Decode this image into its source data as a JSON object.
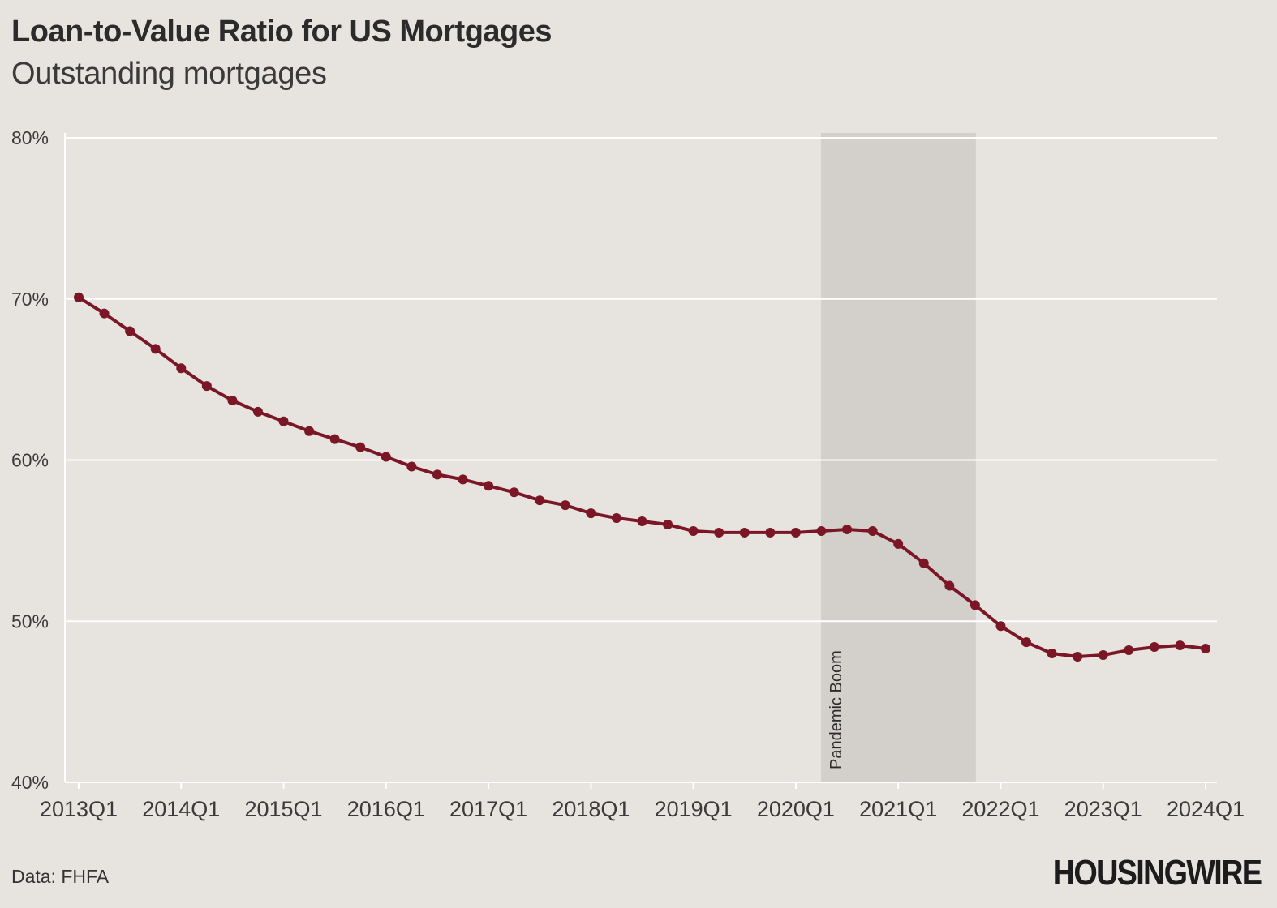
{
  "header": {
    "title": "Loan-to-Value Ratio for US Mortgages",
    "subtitle": "Outstanding mortgages"
  },
  "footer": {
    "source": "Data: FHFA",
    "logo_text": "HOUSINGWIRE"
  },
  "colors": {
    "background": "#e7e3df",
    "line": "#7a1626",
    "grid": "#ffffff",
    "shade": "#d3d0cc"
  },
  "chart_data": {
    "type": "line",
    "title": "Loan-to-Value Ratio for US Mortgages",
    "subtitle": "Outstanding mortgages",
    "xlabel": "",
    "ylabel": "",
    "ylim": [
      40,
      80
    ],
    "y_ticks": [
      "40%",
      "50%",
      "60%",
      "70%",
      "80%"
    ],
    "x_ticks": [
      "2013Q1",
      "2014Q1",
      "2015Q1",
      "2016Q1",
      "2017Q1",
      "2018Q1",
      "2019Q1",
      "2020Q1",
      "2021Q1",
      "2022Q1",
      "2023Q1",
      "2024Q1"
    ],
    "grid": true,
    "x": [
      "2013Q1",
      "2013Q2",
      "2013Q3",
      "2013Q4",
      "2014Q1",
      "2014Q2",
      "2014Q3",
      "2014Q4",
      "2015Q1",
      "2015Q2",
      "2015Q3",
      "2015Q4",
      "2016Q1",
      "2016Q2",
      "2016Q3",
      "2016Q4",
      "2017Q1",
      "2017Q2",
      "2017Q3",
      "2017Q4",
      "2018Q1",
      "2018Q2",
      "2018Q3",
      "2018Q4",
      "2019Q1",
      "2019Q2",
      "2019Q3",
      "2019Q4",
      "2020Q1",
      "2020Q2",
      "2020Q3",
      "2020Q4",
      "2021Q1",
      "2021Q2",
      "2021Q3",
      "2021Q4",
      "2022Q1",
      "2022Q2",
      "2022Q3",
      "2022Q4",
      "2023Q1",
      "2023Q2",
      "2023Q3",
      "2023Q4",
      "2024Q1"
    ],
    "series": [
      {
        "values": [
          70.1,
          69.1,
          68.0,
          66.9,
          65.7,
          64.6,
          63.7,
          63.0,
          62.4,
          61.8,
          61.3,
          60.8,
          60.2,
          59.6,
          59.1,
          58.8,
          58.4,
          58.0,
          57.5,
          57.2,
          56.7,
          56.4,
          56.2,
          56.0,
          55.6,
          55.5,
          55.5,
          55.5,
          55.5,
          55.6,
          55.7,
          55.6,
          54.8,
          53.6,
          52.2,
          51.0,
          49.7,
          48.7,
          48.0,
          47.8,
          47.9,
          48.2,
          48.4,
          48.5,
          48.3
        ]
      }
    ],
    "shaded_regions": [
      {
        "label": "Pandemic Boom",
        "start": "2020Q2",
        "end": "2021Q4"
      }
    ]
  }
}
